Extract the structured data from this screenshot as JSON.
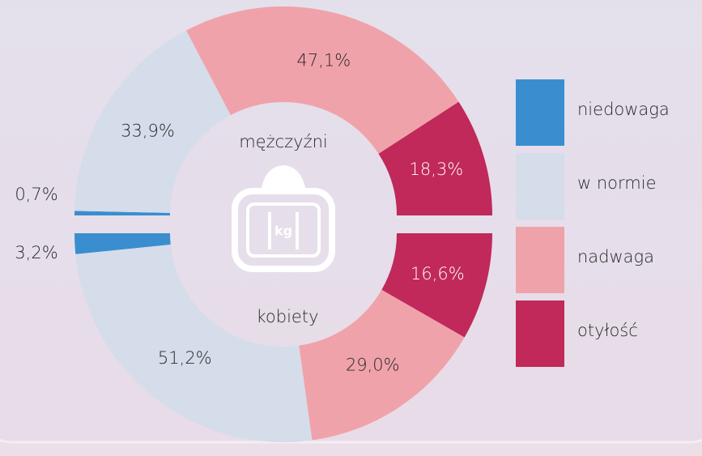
{
  "chart_data": {
    "type": "pie",
    "categories": [
      "niedowaga",
      "w normie",
      "nadwaga",
      "otyłość"
    ],
    "colors": [
      "#3a8ed0",
      "#d5dcea",
      "#f0a2aa",
      "#c0295a"
    ],
    "series": [
      {
        "name": "mężczyźni",
        "values": [
          0.7,
          33.9,
          47.1,
          18.3
        ],
        "value_labels": [
          "0,7%",
          "33,9%",
          "47,1%",
          "18,3%"
        ]
      },
      {
        "name": "kobiety",
        "values": [
          3.2,
          51.2,
          29.0,
          16.6
        ],
        "value_labels": [
          "3,2%",
          "51,2%",
          "29,0%",
          "16,6%"
        ]
      }
    ],
    "icon_label": "kg"
  }
}
